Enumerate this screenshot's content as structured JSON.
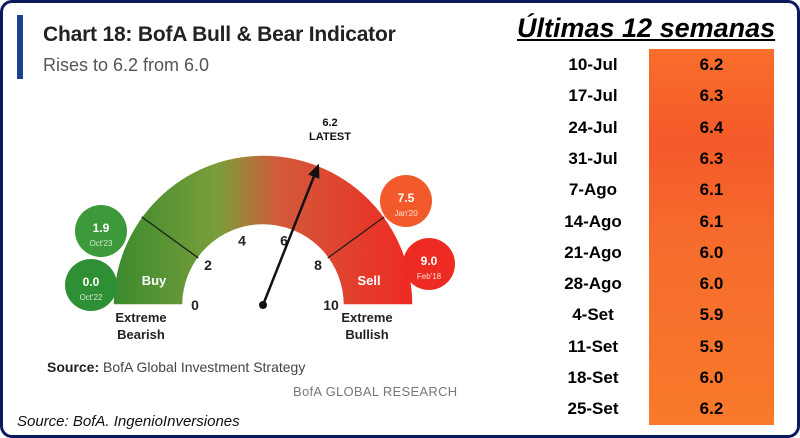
{
  "chart_data": {
    "type": "gauge",
    "title": "Chart 18: BofA Bull & Bear Indicator",
    "subtitle": "Rises to 6.2 from 6.0",
    "range": [
      0,
      10
    ],
    "ticks": [
      0,
      2,
      4,
      6,
      8,
      10
    ],
    "current": {
      "value": 6.2,
      "value_label": "6.2",
      "label": "LATEST"
    },
    "zones": [
      {
        "label": "Buy",
        "from": 0,
        "to": 2
      },
      {
        "label": "Sell",
        "from": 8,
        "to": 10
      }
    ],
    "extreme_left": [
      "Extreme",
      "Bearish"
    ],
    "extreme_right": [
      "Extreme",
      "Bullish"
    ],
    "history_markers": [
      {
        "value": "1.9",
        "date": "Oct'23",
        "color": "#3d9a3a"
      },
      {
        "value": "0.0",
        "date": "Oct'22",
        "color": "#2f8f35"
      },
      {
        "value": "7.5",
        "date": "Jan'20",
        "color": "#f25a2c"
      },
      {
        "value": "9.0",
        "date": "Feb'18",
        "color": "#ee2b22"
      }
    ],
    "source_prefix": "Source:",
    "source_text": "BofA Global Investment Strategy",
    "branding": "BofA GLOBAL RESEARCH"
  },
  "weekly_table": {
    "title": "Últimas 12 semanas",
    "rows": [
      {
        "date": "10-Jul",
        "value": "6.2"
      },
      {
        "date": "17-Jul",
        "value": "6.3"
      },
      {
        "date": "24-Jul",
        "value": "6.4"
      },
      {
        "date": "31-Jul",
        "value": "6.3"
      },
      {
        "date": "7-Ago",
        "value": "6.1"
      },
      {
        "date": "14-Ago",
        "value": "6.1"
      },
      {
        "date": "21-Ago",
        "value": "6.0"
      },
      {
        "date": "28-Ago",
        "value": "6.0"
      },
      {
        "date": "4-Set",
        "value": "5.9"
      },
      {
        "date": "11-Set",
        "value": "5.9"
      },
      {
        "date": "18-Set",
        "value": "6.0"
      },
      {
        "date": "25-Set",
        "value": "6.2"
      }
    ]
  },
  "footer": {
    "source": "Source: BofA. IngenioInversiones"
  },
  "colors": {
    "frame": "#0b1a5c",
    "accent": "#1e3f96",
    "table_fill": "#f76a2b"
  }
}
